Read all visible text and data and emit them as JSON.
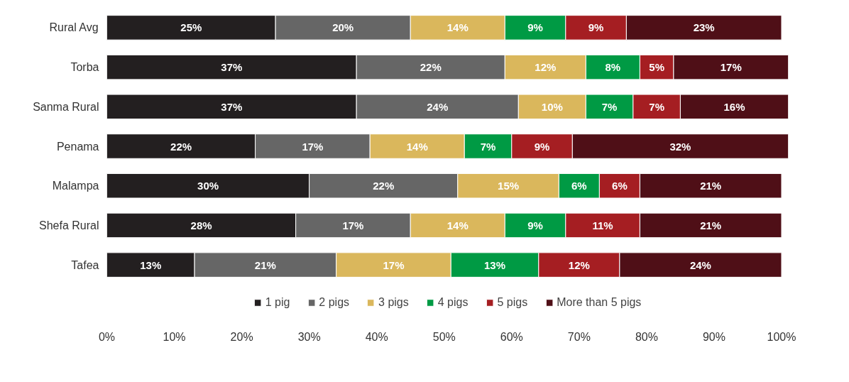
{
  "chart_data": {
    "type": "bar",
    "orientation": "horizontal",
    "stacked": true,
    "legend": "bottom",
    "grid": false,
    "categories": [
      "Rural Avg",
      "Torba",
      "Sanma Rural",
      "Penama",
      "Malampa",
      "Shefa Rural",
      "Tafea"
    ],
    "series": [
      {
        "name": "1 pig",
        "color": "#231f20",
        "values": [
          25,
          37,
          37,
          22,
          30,
          28,
          13
        ],
        "value_labels": [
          "25%",
          "37%",
          "37%",
          "22%",
          "30%",
          "28%",
          "13%"
        ]
      },
      {
        "name": "2 pigs",
        "color": "#666666",
        "values": [
          20,
          22,
          24,
          17,
          22,
          17,
          21
        ],
        "value_labels": [
          "20%",
          "22%",
          "24%",
          "17%",
          "22%",
          "17%",
          "21%"
        ]
      },
      {
        "name": "3 pigs",
        "color": "#dab75c",
        "values": [
          14,
          12,
          10,
          14,
          15,
          14,
          17
        ],
        "value_labels": [
          "14%",
          "12%",
          "10%",
          "14%",
          "15%",
          "14%",
          "17%"
        ]
      },
      {
        "name": "4 pigs",
        "color": "#009a44",
        "values": [
          9,
          8,
          7,
          7,
          6,
          9,
          13
        ],
        "value_labels": [
          "9%",
          "8%",
          "7%",
          "7%",
          "6%",
          "9%",
          "13%"
        ]
      },
      {
        "name": "5 pigs",
        "color": "#a51e22",
        "values": [
          9,
          5,
          7,
          9,
          6,
          11,
          12
        ],
        "value_labels": [
          "9%",
          "5%",
          "7%",
          "9%",
          "6%",
          "11%",
          "12%"
        ]
      },
      {
        "name": "More than 5 pigs",
        "color": "#4f0f17",
        "values": [
          23,
          17,
          16,
          32,
          21,
          21,
          24
        ],
        "value_labels": [
          "23%",
          "17%",
          "16%",
          "32%",
          "21%",
          "21%",
          "24%"
        ]
      }
    ],
    "xlim": [
      0,
      101
    ],
    "xticks": [
      {
        "value": 0,
        "label": "0%"
      },
      {
        "value": 10,
        "label": "10%"
      },
      {
        "value": 20,
        "label": "20%"
      },
      {
        "value": 30,
        "label": "30%"
      },
      {
        "value": 40,
        "label": "40%"
      },
      {
        "value": 50,
        "label": "50%"
      },
      {
        "value": 60,
        "label": "60%"
      },
      {
        "value": 70,
        "label": "70%"
      },
      {
        "value": 80,
        "label": "80%"
      },
      {
        "value": 90,
        "label": "90%"
      },
      {
        "value": 100,
        "label": "100%"
      }
    ]
  }
}
